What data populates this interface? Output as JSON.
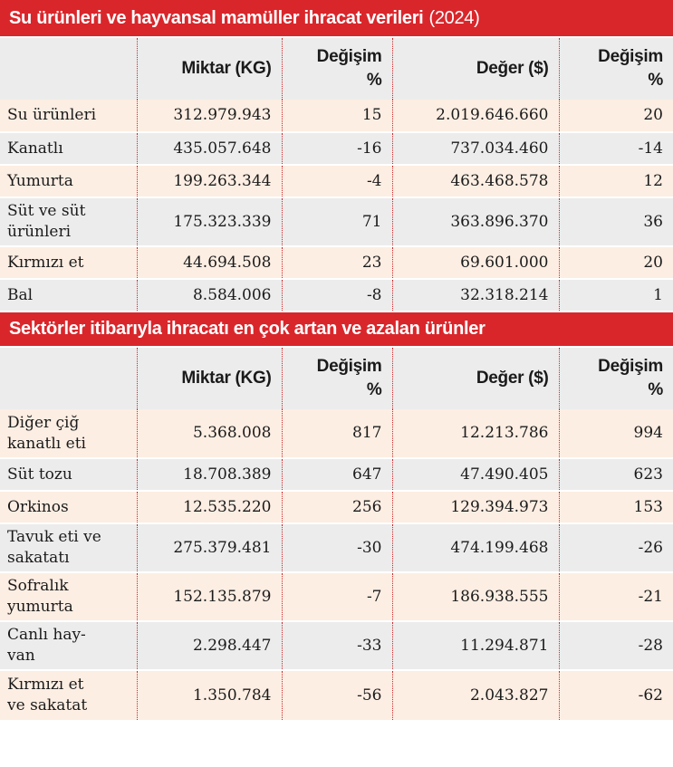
{
  "table1": {
    "title": "Su ürünleri ve hayvansal mamüller ihracat verileri",
    "year": "(2024)",
    "headers": [
      "",
      "Miktar (KG)",
      "Değişim %",
      "Değer ($)",
      "Değişim %"
    ],
    "header_lines": [
      [
        "",
        ""
      ],
      [
        "",
        "Miktar (KG)"
      ],
      [
        "Değişim",
        "%"
      ],
      [
        "",
        "Değer ($)"
      ],
      [
        "Değişim",
        "%"
      ]
    ],
    "rows": [
      {
        "name": "Su ürünleri",
        "miktar": "312.979.943",
        "miktar_degisim": "15",
        "deger": "2.019.646.660",
        "deger_degisim": "20"
      },
      {
        "name": "Kanatlı",
        "miktar": "435.057.648",
        "miktar_degisim": "-16",
        "deger": "737.034.460",
        "deger_degisim": "-14"
      },
      {
        "name": "Yumurta",
        "miktar": "199.263.344",
        "miktar_degisim": "-4",
        "deger": "463.468.578",
        "deger_degisim": "12"
      },
      {
        "name_lines": [
          "Süt ve süt",
          "ürünleri"
        ],
        "miktar": "175.323.339",
        "miktar_degisim": "71",
        "deger": "363.896.370",
        "deger_degisim": "36"
      },
      {
        "name": "Kırmızı et",
        "miktar": "44.694.508",
        "miktar_degisim": "23",
        "deger": "69.601.000",
        "deger_degisim": "20"
      },
      {
        "name": "Bal",
        "miktar": "8.584.006",
        "miktar_degisim": "-8",
        "deger": "32.318.214",
        "deger_degisim": "1"
      }
    ]
  },
  "table2": {
    "title": "Sektörler itibarıyla ihracatı en çok artan ve azalan ürünler",
    "header_lines": [
      [
        "",
        ""
      ],
      [
        "",
        "Miktar (KG)"
      ],
      [
        "Değişim",
        "%"
      ],
      [
        "",
        "Değer ($)"
      ],
      [
        "Değişim",
        "%"
      ]
    ],
    "rows": [
      {
        "name_lines": [
          "Diğer çiğ",
          "kanatlı eti"
        ],
        "miktar": "5.368.008",
        "miktar_degisim": "817",
        "deger": "12.213.786",
        "deger_degisim": "994"
      },
      {
        "name": "Süt tozu",
        "miktar": "18.708.389",
        "miktar_degisim": "647",
        "deger": "47.490.405",
        "deger_degisim": "623"
      },
      {
        "name": "Orkinos",
        "miktar": "12.535.220",
        "miktar_degisim": "256",
        "deger": "129.394.973",
        "deger_degisim": "153"
      },
      {
        "name_lines": [
          "Tavuk eti ve",
          "sakatatı"
        ],
        "miktar": "275.379.481",
        "miktar_degisim": "-30",
        "deger": "474.199.468",
        "deger_degisim": "-26"
      },
      {
        "name_lines": [
          "Sofralık",
          "yumurta"
        ],
        "miktar": "152.135.879",
        "miktar_degisim": "-7",
        "deger": "186.938.555",
        "deger_degisim": "-21"
      },
      {
        "name_lines": [
          "Canlı hay-",
          "van"
        ],
        "miktar": "2.298.447",
        "miktar_degisim": "-33",
        "deger": "11.294.871",
        "deger_degisim": "-28"
      },
      {
        "name_lines": [
          "Kırmızı et",
          "ve sakatat"
        ],
        "miktar": "1.350.784",
        "miktar_degisim": "-56",
        "deger": "2.043.827",
        "deger_degisim": "-62"
      }
    ]
  },
  "colors": {
    "banner": "#d9262b",
    "row_tint": "#fdeee3",
    "row_gray": "#ececec",
    "divider": "#c9282b"
  }
}
